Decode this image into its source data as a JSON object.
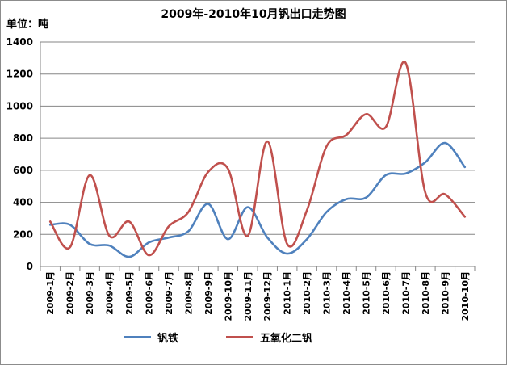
{
  "chart_data": {
    "type": "line",
    "title": "2009年-2010年10月钒出口走势图",
    "unit_label": "单位：吨",
    "ylim": [
      0,
      1400
    ],
    "yticks": [
      "0",
      "200",
      "400",
      "600",
      "800",
      "1000",
      "1200",
      "1400"
    ],
    "grid": true,
    "legend_position": "bottom",
    "categories": [
      "2009-1月",
      "2009-2月",
      "2009-3月",
      "2009-4月",
      "2009-5月",
      "2009-6月",
      "2009-7月",
      "2009-8月",
      "2009-9月",
      "2009-10月",
      "2009-11月",
      "2009-12月",
      "2010-1月",
      "2010-2月",
      "2010-3月",
      "2010-4月",
      "2010-5月",
      "2010-6月",
      "2010-7月",
      "2010-8月",
      "2010-9月",
      "2010-10月"
    ],
    "series": [
      {
        "name": "钒铁",
        "color": "#4f81bd",
        "values": [
          260,
          260,
          140,
          130,
          60,
          150,
          180,
          220,
          390,
          170,
          370,
          180,
          80,
          170,
          340,
          420,
          430,
          570,
          580,
          650,
          770,
          620
        ]
      },
      {
        "name": "五氧化二钒",
        "color": "#c0504d",
        "values": [
          280,
          120,
          570,
          190,
          280,
          70,
          250,
          340,
          590,
          610,
          190,
          780,
          140,
          350,
          750,
          820,
          950,
          870,
          1270,
          460,
          450,
          310
        ]
      }
    ]
  }
}
